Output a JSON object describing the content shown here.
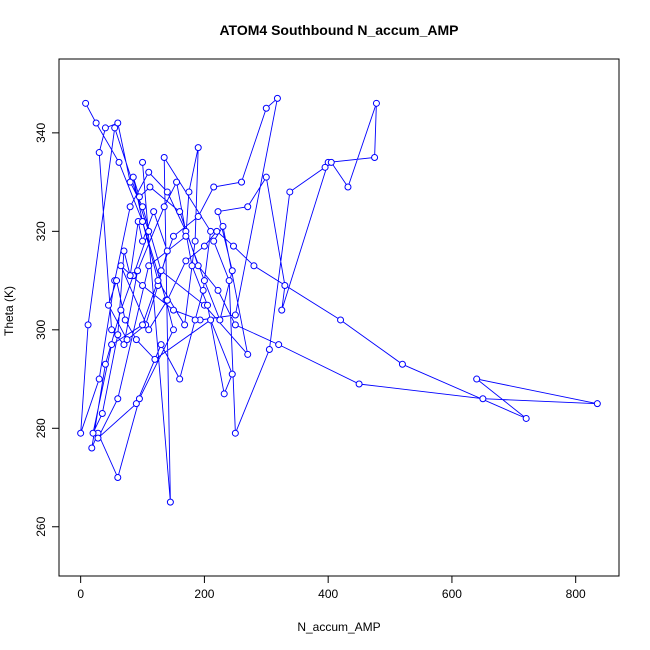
{
  "chart_data": {
    "type": "line",
    "title": "ATOM4 Southbound N_accum_AMP",
    "xlabel": "N_accum_AMP",
    "ylabel": "Theta (K)",
    "xlim": [
      -35,
      870
    ],
    "ylim": [
      250,
      355
    ],
    "xticks": [
      0,
      200,
      400,
      600,
      800
    ],
    "yticks": [
      260,
      280,
      300,
      320,
      340
    ],
    "grid": false,
    "legend": "none",
    "colors": {
      "series": "#0000ff",
      "axis": "#000000"
    },
    "markers": "open-circle",
    "series": [
      {
        "x": [
          8,
          25,
          62,
          100,
          138,
          150,
          95,
          60,
          28,
          18,
          40,
          65,
          85,
          110,
          55,
          12,
          0,
          30,
          55,
          80,
          110,
          140,
          170,
          200,
          225,
          245,
          222,
          270,
          300,
          330,
          325,
          400,
          475,
          478,
          432,
          405,
          395,
          338,
          305,
          250,
          240,
          215,
          230,
          270,
          200,
          130,
          100,
          80,
          60,
          40,
          30,
          50,
          70,
          92,
          135,
          155,
          180,
          205,
          232,
          245,
          210,
          120,
          90,
          72,
          58,
          45,
          75,
          105,
          125,
          140,
          118,
          100,
          93,
          80,
          70,
          60,
          35,
          20,
          50,
          100,
          150,
          190,
          215,
          260,
          300,
          318,
          250,
          193,
          150,
          100,
          65,
          110,
          140,
          170,
          200,
          220,
          247,
          280,
          420,
          520,
          720,
          640,
          835,
          650,
          450,
          320,
          250,
          222,
          190,
          160,
          112,
          95,
          85,
          100,
          125,
          168,
          185,
          190,
          175,
          170,
          110,
          60,
          28,
          90,
          130,
          160,
          185,
          198,
          210,
          135,
          145,
          100
        ],
        "y": [
          346,
          342,
          334,
          322,
          306,
          300,
          286,
          270,
          279,
          276,
          293,
          304,
          311,
          320,
          341,
          301,
          279,
          290,
          310,
          325,
          332,
          328,
          320,
          310,
          302,
          312,
          324,
          325,
          331,
          309,
          304,
          334,
          335,
          346,
          329,
          334,
          333,
          328,
          296,
          279,
          310,
          318,
          321,
          295,
          305,
          312,
          325,
          330,
          342,
          341,
          336,
          300,
          297,
          312,
          325,
          330,
          313,
          305,
          287,
          291,
          302,
          294,
          298,
          302,
          310,
          305,
          298,
          301,
          309,
          316,
          324,
          318,
          322,
          311,
          316,
          299,
          283,
          279,
          297,
          301,
          319,
          323,
          329,
          330,
          345,
          347,
          303,
          302,
          304,
          309,
          313,
          300,
          306,
          314,
          317,
          320,
          317,
          313,
          302,
          293,
          282,
          290,
          285,
          286,
          289,
          297,
          301,
          308,
          313,
          324,
          329,
          327,
          331,
          322,
          310,
          301,
          318,
          337,
          328,
          319,
          313,
          286,
          278,
          285,
          297,
          290,
          302,
          308,
          320,
          335,
          265,
          334
        ]
      }
    ]
  }
}
